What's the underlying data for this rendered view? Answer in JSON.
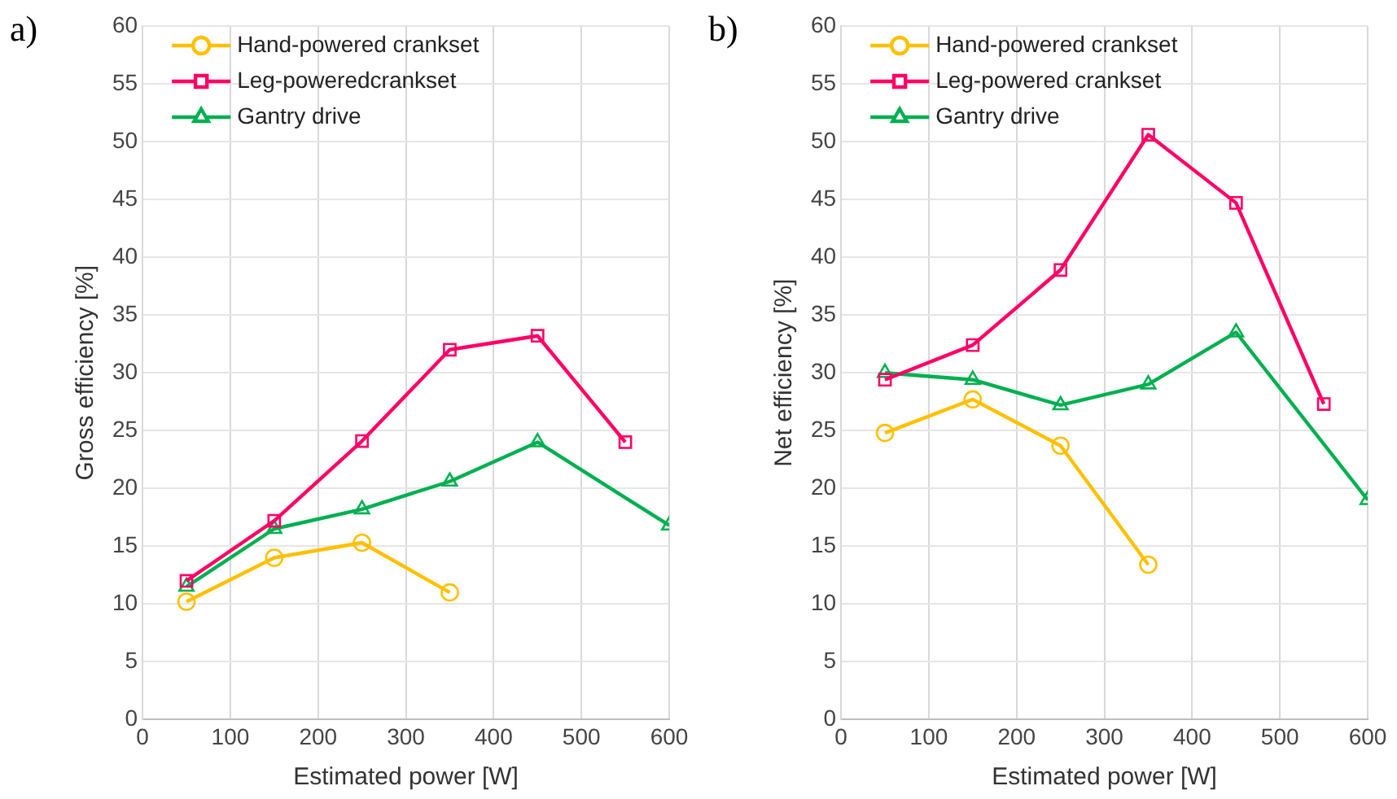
{
  "chart_data": [
    {
      "type": "line",
      "annotations": [
        "a)"
      ],
      "xlabel": "Estimated power [W]",
      "ylabel": "Gross efficiency [%]",
      "xlim": [
        0,
        600
      ],
      "xticks": [
        0,
        100,
        200,
        300,
        400,
        500,
        600
      ],
      "ylim": [
        0,
        60
      ],
      "yticks": [
        0,
        5,
        10,
        15,
        20,
        25,
        30,
        35,
        40,
        45,
        50,
        55,
        60
      ],
      "grid": true,
      "legend": "top left",
      "series": [
        {
          "name": "Hand-powered crankset",
          "color": "#ffc000",
          "marker": "circle",
          "x": [
            50,
            150,
            250,
            350
          ],
          "values": [
            10.2,
            14,
            15.3,
            11
          ]
        },
        {
          "name": "Leg-poweredcrankset",
          "color": "#ff0066",
          "marker": "square",
          "x": [
            50,
            150,
            250,
            350,
            450,
            550
          ],
          "values": [
            12,
            17.2,
            24.1,
            32,
            33.2,
            24
          ]
        },
        {
          "name": "Gantry drive",
          "color": "#00b050",
          "marker": "triangle",
          "x": [
            50,
            150,
            250,
            350,
            450,
            600
          ],
          "values": [
            11.5,
            16.5,
            18.2,
            20.6,
            24,
            16.8
          ]
        }
      ]
    },
    {
      "type": "line",
      "annotations": [
        "b)"
      ],
      "xlabel": "Estimated power [W]",
      "ylabel": "Net efficiency [%]",
      "xlim": [
        0,
        600
      ],
      "xticks": [
        0,
        100,
        200,
        300,
        400,
        500,
        600
      ],
      "ylim": [
        0,
        60
      ],
      "yticks": [
        0,
        5,
        10,
        15,
        20,
        25,
        30,
        35,
        40,
        45,
        50,
        55,
        60
      ],
      "grid": true,
      "legend": "top left",
      "series": [
        {
          "name": "Hand-powered crankset",
          "color": "#ffc000",
          "marker": "circle",
          "x": [
            50,
            150,
            250,
            350
          ],
          "values": [
            24.8,
            27.7,
            23.7,
            13.4
          ]
        },
        {
          "name": "Leg-powered crankset",
          "color": "#ff0066",
          "marker": "square",
          "x": [
            50,
            150,
            250,
            350,
            450,
            550
          ],
          "values": [
            29.4,
            32.4,
            38.9,
            50.6,
            44.7,
            27.3
          ]
        },
        {
          "name": "Gantry drive",
          "color": "#00b050",
          "marker": "triangle",
          "x": [
            50,
            150,
            250,
            350,
            450,
            600
          ],
          "values": [
            30,
            29.4,
            27.2,
            29,
            33.5,
            19
          ]
        }
      ]
    }
  ]
}
